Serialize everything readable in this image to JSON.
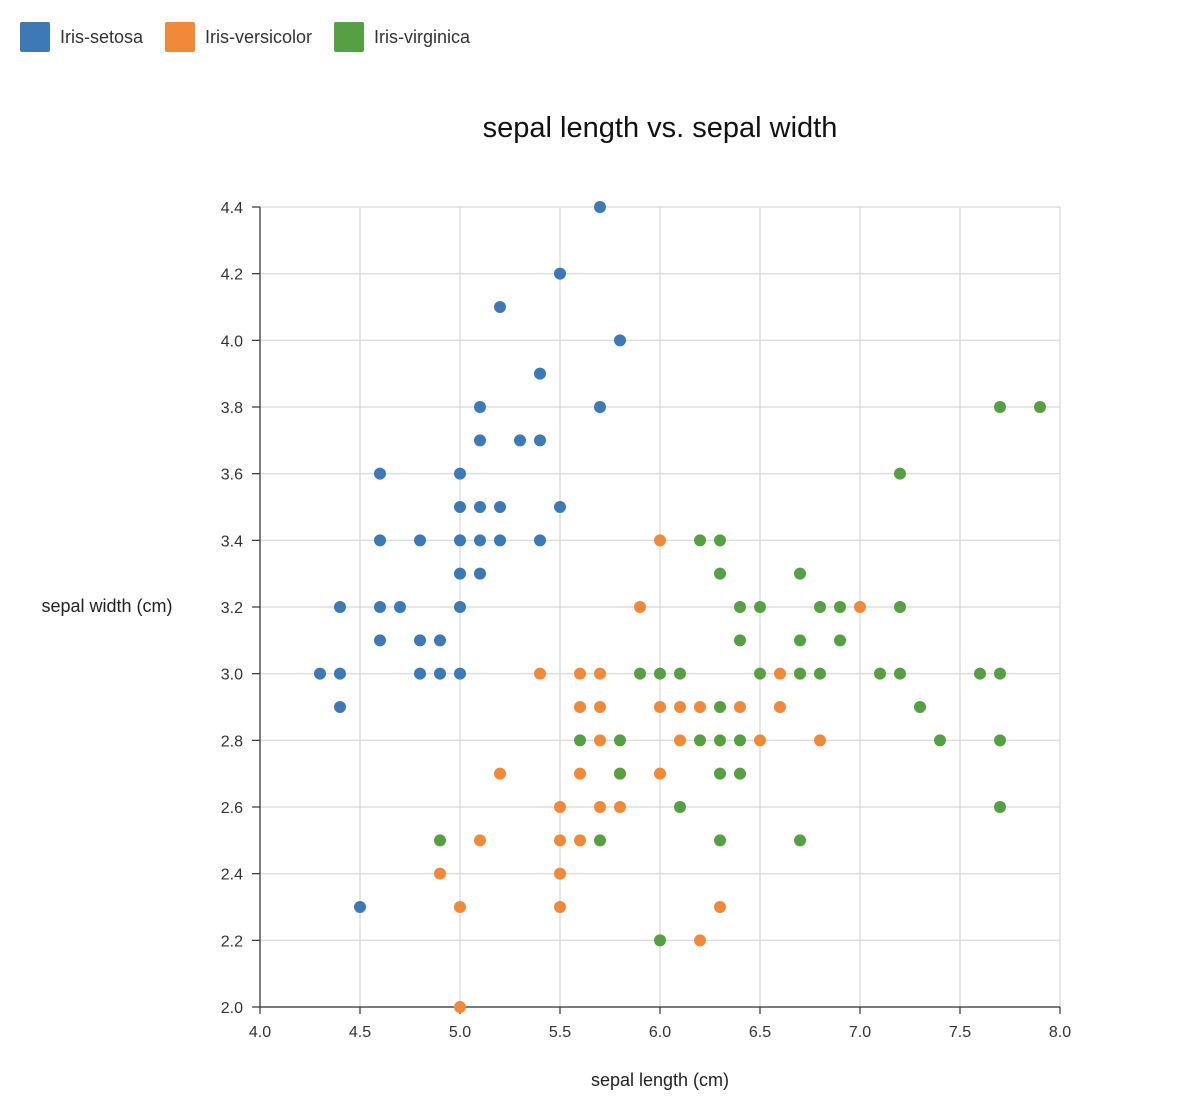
{
  "chart_data": {
    "type": "scatter",
    "title": "sepal length vs. sepal width",
    "xlabel": "sepal length (cm)",
    "ylabel": "sepal width (cm)",
    "xlim": [
      4.0,
      8.0
    ],
    "ylim": [
      2.0,
      4.4
    ],
    "xticks": [
      "4.0",
      "4.5",
      "5.0",
      "5.5",
      "6.0",
      "6.5",
      "7.0",
      "7.5",
      "8.0"
    ],
    "yticks": [
      "2.0",
      "2.2",
      "2.4",
      "2.6",
      "2.8",
      "3.0",
      "3.2",
      "3.4",
      "3.6",
      "3.8",
      "4.0",
      "4.2",
      "4.4"
    ],
    "grid": true,
    "legend_position": "top-left",
    "series": [
      {
        "name": "Iris-setosa",
        "color": "#3d79b4",
        "points": [
          [
            5.7,
            4.4
          ],
          [
            5.5,
            4.2
          ],
          [
            5.2,
            4.1
          ],
          [
            5.8,
            4.0
          ],
          [
            5.4,
            3.9
          ],
          [
            5.1,
            3.8
          ],
          [
            5.7,
            3.8
          ],
          [
            5.1,
            3.7
          ],
          [
            5.3,
            3.7
          ],
          [
            5.4,
            3.7
          ],
          [
            4.6,
            3.6
          ],
          [
            5.0,
            3.6
          ],
          [
            5.0,
            3.5
          ],
          [
            5.1,
            3.5
          ],
          [
            5.2,
            3.5
          ],
          [
            5.5,
            3.5
          ],
          [
            4.6,
            3.4
          ],
          [
            4.8,
            3.4
          ],
          [
            5.0,
            3.4
          ],
          [
            5.1,
            3.4
          ],
          [
            5.2,
            3.4
          ],
          [
            5.4,
            3.4
          ],
          [
            5.0,
            3.3
          ],
          [
            5.1,
            3.3
          ],
          [
            4.4,
            3.2
          ],
          [
            4.6,
            3.2
          ],
          [
            4.7,
            3.2
          ],
          [
            5.0,
            3.2
          ],
          [
            4.6,
            3.1
          ],
          [
            4.8,
            3.1
          ],
          [
            4.9,
            3.1
          ],
          [
            4.3,
            3.0
          ],
          [
            4.4,
            3.0
          ],
          [
            4.8,
            3.0
          ],
          [
            4.9,
            3.0
          ],
          [
            5.0,
            3.0
          ],
          [
            4.4,
            2.9
          ],
          [
            4.5,
            2.3
          ]
        ]
      },
      {
        "name": "Iris-versicolor",
        "color": "#f08a3a",
        "points": [
          [
            6.0,
            3.4
          ],
          [
            5.9,
            3.2
          ],
          [
            7.0,
            3.2
          ],
          [
            5.4,
            3.0
          ],
          [
            5.6,
            3.0
          ],
          [
            5.7,
            3.0
          ],
          [
            6.6,
            3.0
          ],
          [
            6.7,
            3.0
          ],
          [
            5.6,
            2.9
          ],
          [
            5.7,
            2.9
          ],
          [
            6.0,
            2.9
          ],
          [
            6.1,
            2.9
          ],
          [
            6.2,
            2.9
          ],
          [
            6.4,
            2.9
          ],
          [
            6.6,
            2.9
          ],
          [
            5.7,
            2.8
          ],
          [
            6.1,
            2.8
          ],
          [
            6.5,
            2.8
          ],
          [
            6.8,
            2.8
          ],
          [
            5.2,
            2.7
          ],
          [
            5.6,
            2.7
          ],
          [
            5.8,
            2.7
          ],
          [
            6.0,
            2.7
          ],
          [
            5.5,
            2.6
          ],
          [
            5.7,
            2.6
          ],
          [
            5.8,
            2.6
          ],
          [
            5.1,
            2.5
          ],
          [
            5.5,
            2.5
          ],
          [
            5.6,
            2.5
          ],
          [
            4.9,
            2.4
          ],
          [
            5.5,
            2.4
          ],
          [
            5.0,
            2.3
          ],
          [
            5.5,
            2.3
          ],
          [
            6.3,
            2.3
          ],
          [
            6.2,
            2.2
          ],
          [
            5.0,
            2.0
          ]
        ]
      },
      {
        "name": "Iris-virginica",
        "color": "#56a043",
        "points": [
          [
            7.7,
            3.8
          ],
          [
            7.9,
            3.8
          ],
          [
            7.2,
            3.6
          ],
          [
            6.2,
            3.4
          ],
          [
            6.3,
            3.4
          ],
          [
            6.3,
            3.3
          ],
          [
            6.7,
            3.3
          ],
          [
            6.4,
            3.2
          ],
          [
            6.5,
            3.2
          ],
          [
            6.8,
            3.2
          ],
          [
            6.9,
            3.2
          ],
          [
            7.2,
            3.2
          ],
          [
            6.4,
            3.1
          ],
          [
            6.7,
            3.1
          ],
          [
            6.9,
            3.1
          ],
          [
            5.9,
            3.0
          ],
          [
            6.0,
            3.0
          ],
          [
            6.1,
            3.0
          ],
          [
            6.5,
            3.0
          ],
          [
            6.7,
            3.0
          ],
          [
            6.8,
            3.0
          ],
          [
            7.1,
            3.0
          ],
          [
            7.2,
            3.0
          ],
          [
            7.6,
            3.0
          ],
          [
            7.7,
            3.0
          ],
          [
            6.3,
            2.9
          ],
          [
            7.3,
            2.9
          ],
          [
            5.6,
            2.8
          ],
          [
            5.8,
            2.8
          ],
          [
            6.2,
            2.8
          ],
          [
            6.3,
            2.8
          ],
          [
            6.4,
            2.8
          ],
          [
            7.4,
            2.8
          ],
          [
            7.7,
            2.8
          ],
          [
            5.8,
            2.7
          ],
          [
            6.3,
            2.7
          ],
          [
            6.4,
            2.7
          ],
          [
            6.1,
            2.6
          ],
          [
            7.7,
            2.6
          ],
          [
            4.9,
            2.5
          ],
          [
            5.7,
            2.5
          ],
          [
            6.3,
            2.5
          ],
          [
            6.7,
            2.5
          ],
          [
            6.0,
            2.2
          ]
        ]
      }
    ]
  }
}
